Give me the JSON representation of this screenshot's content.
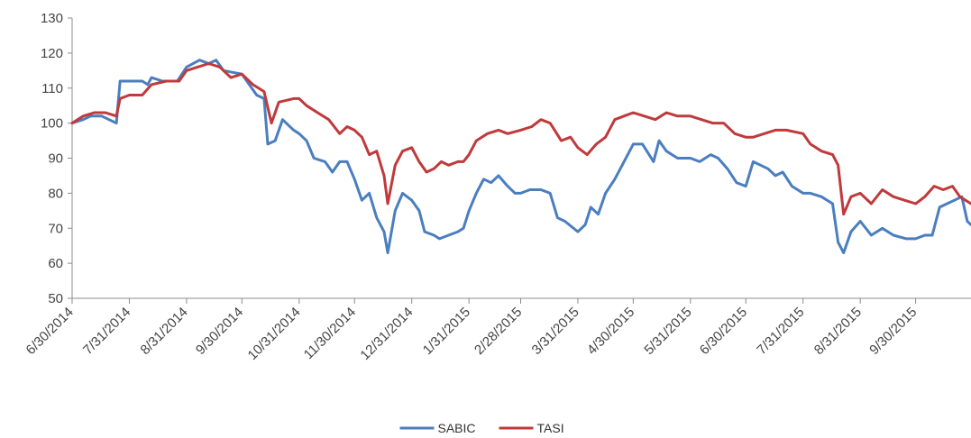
{
  "chart_data": {
    "type": "line",
    "title": "",
    "xlabel": "",
    "ylabel": "",
    "ylim": [
      50,
      130
    ],
    "yticks": [
      50,
      60,
      70,
      80,
      90,
      100,
      110,
      120,
      130
    ],
    "xlim": [
      "6/30/2014",
      "10/30/2015"
    ],
    "xticks": [
      "6/30/2014",
      "7/31/2014",
      "8/31/2014",
      "9/30/2014",
      "10/31/2014",
      "11/30/2014",
      "12/31/2014",
      "1/31/2015",
      "2/28/2015",
      "3/31/2015",
      "4/30/2015",
      "5/31/2015",
      "6/30/2015",
      "7/31/2015",
      "8/31/2015",
      "9/30/2015"
    ],
    "grid": false,
    "legend": "bottom-center",
    "series": [
      {
        "name": "SABIC",
        "color": "#4a7ebf",
        "points": [
          [
            "6/30/2014",
            100
          ],
          [
            "7/6/2014",
            101
          ],
          [
            "7/10/2014",
            102
          ],
          [
            "7/16/2014",
            102
          ],
          [
            "7/20/2014",
            101
          ],
          [
            "7/24/2014",
            100
          ],
          [
            "7/26/2014",
            112
          ],
          [
            "7/31/2014",
            112
          ],
          [
            "8/7/2014",
            112
          ],
          [
            "8/10/2014",
            111
          ],
          [
            "8/12/2014",
            113
          ],
          [
            "8/18/2014",
            112
          ],
          [
            "8/26/2014",
            112
          ],
          [
            "8/31/2014",
            116
          ],
          [
            "9/7/2014",
            118
          ],
          [
            "9/12/2014",
            117
          ],
          [
            "9/16/2014",
            118
          ],
          [
            "9/20/2014",
            115
          ],
          [
            "9/30/2014",
            114
          ],
          [
            "10/8/2014",
            108
          ],
          [
            "10/12/2014",
            107
          ],
          [
            "10/14/2014",
            94
          ],
          [
            "10/18/2014",
            95
          ],
          [
            "10/22/2014",
            101
          ],
          [
            "10/28/2014",
            98
          ],
          [
            "10/31/2014",
            97
          ],
          [
            "11/4/2014",
            95
          ],
          [
            "11/8/2014",
            90
          ],
          [
            "11/14/2014",
            89
          ],
          [
            "11/18/2014",
            86
          ],
          [
            "11/22/2014",
            89
          ],
          [
            "11/26/2014",
            89
          ],
          [
            "11/30/2014",
            84
          ],
          [
            "12/4/2014",
            78
          ],
          [
            "12/8/2014",
            80
          ],
          [
            "12/12/2014",
            73
          ],
          [
            "12/16/2014",
            69
          ],
          [
            "12/18/2014",
            63
          ],
          [
            "12/22/2014",
            75
          ],
          [
            "12/26/2014",
            80
          ],
          [
            "12/31/2014",
            78
          ],
          [
            "1/4/2015",
            75
          ],
          [
            "1/7/2015",
            69
          ],
          [
            "1/12/2015",
            68
          ],
          [
            "1/15/2015",
            67
          ],
          [
            "1/20/2015",
            68
          ],
          [
            "1/25/2015",
            69
          ],
          [
            "1/28/2015",
            70
          ],
          [
            "1/31/2015",
            75
          ],
          [
            "2/4/2015",
            80
          ],
          [
            "2/8/2015",
            84
          ],
          [
            "2/12/2015",
            83
          ],
          [
            "2/16/2015",
            85
          ],
          [
            "2/21/2015",
            82
          ],
          [
            "2/25/2015",
            80
          ],
          [
            "2/28/2015",
            80
          ],
          [
            "3/5/2015",
            81
          ],
          [
            "3/11/2015",
            81
          ],
          [
            "3/16/2015",
            80
          ],
          [
            "3/20/2015",
            73
          ],
          [
            "3/24/2015",
            72
          ],
          [
            "3/31/2015",
            69
          ],
          [
            "4/4/2015",
            71
          ],
          [
            "4/7/2015",
            76
          ],
          [
            "4/11/2015",
            74
          ],
          [
            "4/15/2015",
            80
          ],
          [
            "4/20/2015",
            84
          ],
          [
            "4/24/2015",
            88
          ],
          [
            "4/30/2015",
            94
          ],
          [
            "5/5/2015",
            94
          ],
          [
            "5/11/2015",
            89
          ],
          [
            "5/14/2015",
            95
          ],
          [
            "5/18/2015",
            92
          ],
          [
            "5/24/2015",
            90
          ],
          [
            "5/31/2015",
            90
          ],
          [
            "6/5/2015",
            89
          ],
          [
            "6/11/2015",
            91
          ],
          [
            "6/15/2015",
            90
          ],
          [
            "6/20/2015",
            87
          ],
          [
            "6/25/2015",
            83
          ],
          [
            "6/30/2015",
            82
          ],
          [
            "7/4/2015",
            89
          ],
          [
            "7/8/2015",
            88
          ],
          [
            "7/12/2015",
            87
          ],
          [
            "7/16/2015",
            85
          ],
          [
            "7/20/2015",
            86
          ],
          [
            "7/25/2015",
            82
          ],
          [
            "7/31/2015",
            80
          ],
          [
            "8/4/2015",
            80
          ],
          [
            "8/10/2015",
            79
          ],
          [
            "8/16/2015",
            77
          ],
          [
            "8/19/2015",
            66
          ],
          [
            "8/22/2015",
            63
          ],
          [
            "8/26/2015",
            69
          ],
          [
            "8/31/2015",
            72
          ],
          [
            "9/6/2015",
            68
          ],
          [
            "9/12/2015",
            70
          ],
          [
            "9/18/2015",
            68
          ],
          [
            "9/25/2015",
            67
          ],
          [
            "9/30/2015",
            67
          ],
          [
            "10/5/2015",
            68
          ],
          [
            "10/9/2015",
            68
          ],
          [
            "10/13/2015",
            76
          ],
          [
            "10/17/2015",
            77
          ],
          [
            "10/21/2015",
            78
          ],
          [
            "10/25/2015",
            79
          ],
          [
            "10/28/2015",
            72
          ],
          [
            "10/30/2015",
            71
          ]
        ]
      },
      {
        "name": "TASI",
        "color": "#c0393b",
        "points": [
          [
            "6/30/2014",
            100
          ],
          [
            "7/6/2014",
            102
          ],
          [
            "7/12/2014",
            103
          ],
          [
            "7/18/2014",
            103
          ],
          [
            "7/24/2014",
            102
          ],
          [
            "7/26/2014",
            107
          ],
          [
            "7/31/2014",
            108
          ],
          [
            "8/7/2014",
            108
          ],
          [
            "8/12/2014",
            111
          ],
          [
            "8/20/2014",
            112
          ],
          [
            "8/27/2014",
            112
          ],
          [
            "8/31/2014",
            115
          ],
          [
            "9/6/2014",
            116
          ],
          [
            "9/12/2014",
            117
          ],
          [
            "9/18/2014",
            116
          ],
          [
            "9/24/2014",
            113
          ],
          [
            "9/30/2014",
            114
          ],
          [
            "10/6/2014",
            111
          ],
          [
            "10/12/2014",
            109
          ],
          [
            "10/16/2014",
            100
          ],
          [
            "10/20/2014",
            106
          ],
          [
            "10/28/2014",
            107
          ],
          [
            "10/31/2014",
            107
          ],
          [
            "11/4/2014",
            105
          ],
          [
            "11/10/2014",
            103
          ],
          [
            "11/16/2014",
            101
          ],
          [
            "11/22/2014",
            97
          ],
          [
            "11/26/2014",
            99
          ],
          [
            "11/30/2014",
            98
          ],
          [
            "12/4/2014",
            96
          ],
          [
            "12/8/2014",
            91
          ],
          [
            "12/12/2014",
            92
          ],
          [
            "12/16/2014",
            85
          ],
          [
            "12/18/2014",
            77
          ],
          [
            "12/22/2014",
            88
          ],
          [
            "12/26/2014",
            92
          ],
          [
            "12/31/2014",
            93
          ],
          [
            "1/4/2015",
            89
          ],
          [
            "1/8/2015",
            86
          ],
          [
            "1/12/2015",
            87
          ],
          [
            "1/16/2015",
            89
          ],
          [
            "1/20/2015",
            88
          ],
          [
            "1/25/2015",
            89
          ],
          [
            "1/28/2015",
            89
          ],
          [
            "1/31/2015",
            91
          ],
          [
            "2/4/2015",
            95
          ],
          [
            "2/10/2015",
            97
          ],
          [
            "2/16/2015",
            98
          ],
          [
            "2/21/2015",
            97
          ],
          [
            "2/28/2015",
            98
          ],
          [
            "3/6/2015",
            99
          ],
          [
            "3/11/2015",
            101
          ],
          [
            "3/16/2015",
            100
          ],
          [
            "3/22/2015",
            95
          ],
          [
            "3/27/2015",
            96
          ],
          [
            "3/31/2015",
            93
          ],
          [
            "4/5/2015",
            91
          ],
          [
            "4/10/2015",
            94
          ],
          [
            "4/15/2015",
            96
          ],
          [
            "4/20/2015",
            101
          ],
          [
            "4/25/2015",
            102
          ],
          [
            "4/30/2015",
            103
          ],
          [
            "5/6/2015",
            102
          ],
          [
            "5/12/2015",
            101
          ],
          [
            "5/18/2015",
            103
          ],
          [
            "5/24/2015",
            102
          ],
          [
            "5/31/2015",
            102
          ],
          [
            "6/6/2015",
            101
          ],
          [
            "6/12/2015",
            100
          ],
          [
            "6/18/2015",
            100
          ],
          [
            "6/24/2015",
            97
          ],
          [
            "6/30/2015",
            96
          ],
          [
            "7/4/2015",
            96
          ],
          [
            "7/10/2015",
            97
          ],
          [
            "7/16/2015",
            98
          ],
          [
            "7/22/2015",
            98
          ],
          [
            "7/31/2015",
            97
          ],
          [
            "8/4/2015",
            94
          ],
          [
            "8/10/2015",
            92
          ],
          [
            "8/16/2015",
            91
          ],
          [
            "8/19/2015",
            88
          ],
          [
            "8/22/2015",
            74
          ],
          [
            "8/26/2015",
            79
          ],
          [
            "8/31/2015",
            80
          ],
          [
            "9/6/2015",
            77
          ],
          [
            "9/12/2015",
            81
          ],
          [
            "9/18/2015",
            79
          ],
          [
            "9/24/2015",
            78
          ],
          [
            "9/30/2015",
            77
          ],
          [
            "10/5/2015",
            79
          ],
          [
            "10/10/2015",
            82
          ],
          [
            "10/15/2015",
            81
          ],
          [
            "10/20/2015",
            82
          ],
          [
            "10/24/2015",
            79
          ],
          [
            "10/30/2015",
            77
          ]
        ]
      }
    ]
  }
}
